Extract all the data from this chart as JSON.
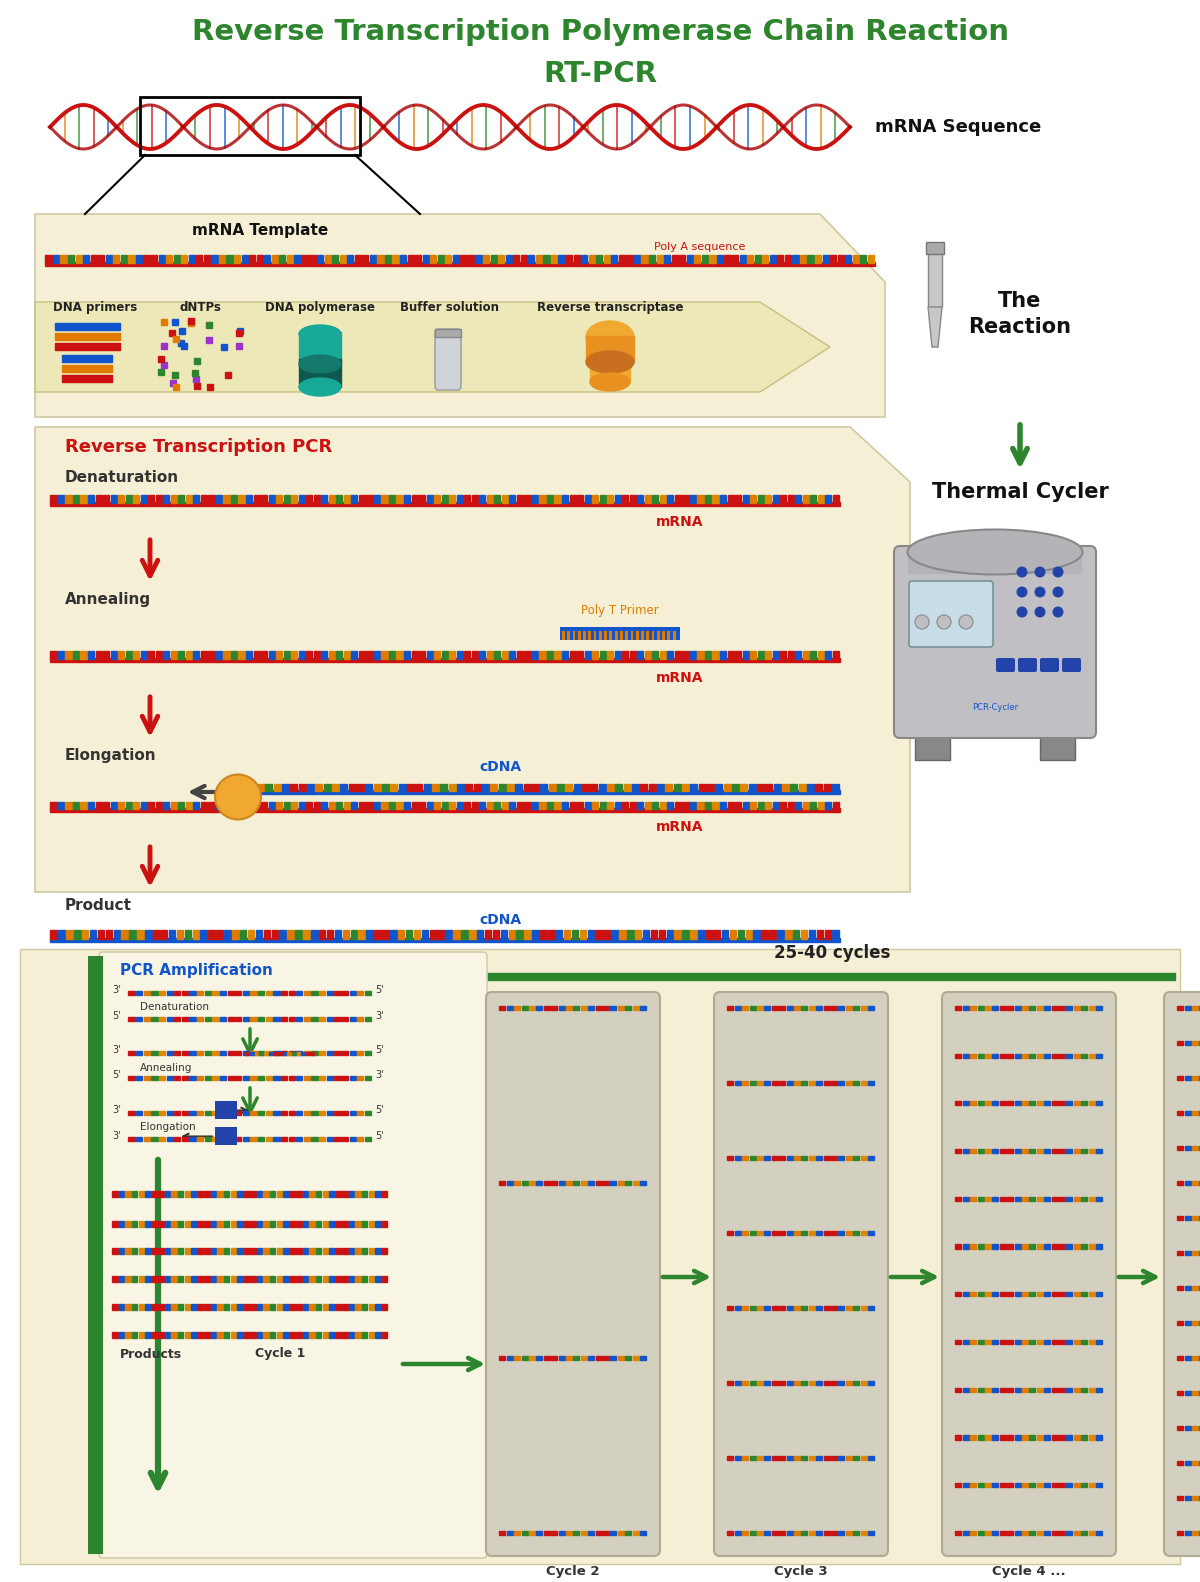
{
  "title_line1": "Reverse Transcription Polymerase Chain Reaction",
  "title_line2": "RT-PCR",
  "title_color": "#2d862d",
  "bg_color": "#ffffff",
  "cream_color": "#f5f0d5",
  "mrna_seq_label": "mRNA Sequence",
  "mrna_template_label": "mRNA Template",
  "poly_a_label": "Poly A sequence",
  "the_reaction_label": "The\nReaction",
  "thermal_cycler_label": "Thermal Cycler",
  "rt_pcr_label": "Reverse Transcription PCR",
  "rt_pcr_color": "#cc1111",
  "denaturation_label": "Denaturation",
  "annealing_label": "Annealing",
  "elongation_label": "Elongation",
  "product_label": "Product",
  "mrna_label": "mRNA",
  "cdna_label": "cDNA",
  "cdna_color": "#1155cc",
  "mrna_color": "#cc1111",
  "poly_t_label": "Poly T Primer",
  "poly_t_color": "#e07b00",
  "pcr_amp_label": "PCR Amplification",
  "pcr_amp_color": "#1155cc",
  "cycles_label": "25-40 cycles",
  "cycle1_label": "Cycle 1",
  "cycle2_label": "Cycle 2",
  "cycle3_label": "Cycle 3",
  "cycle4_label": "Cycle 4 ...",
  "products_label": "Products",
  "green_color": "#2d862d",
  "red_color": "#cc1111",
  "dna_primers_label": "DNA primers",
  "dntps_label": "dNTPs",
  "dna_pol_label": "DNA polymerase",
  "buffer_label": "Buffer solution",
  "rev_trans_label": "Reverse transcriptase",
  "strand_colors": [
    "#cc1111",
    "#1155cc",
    "#e07b00",
    "#2d862d",
    "#dd8800",
    "#1155cc",
    "#cc1111"
  ],
  "pcr_cycler_text": "PCR-Cycler"
}
